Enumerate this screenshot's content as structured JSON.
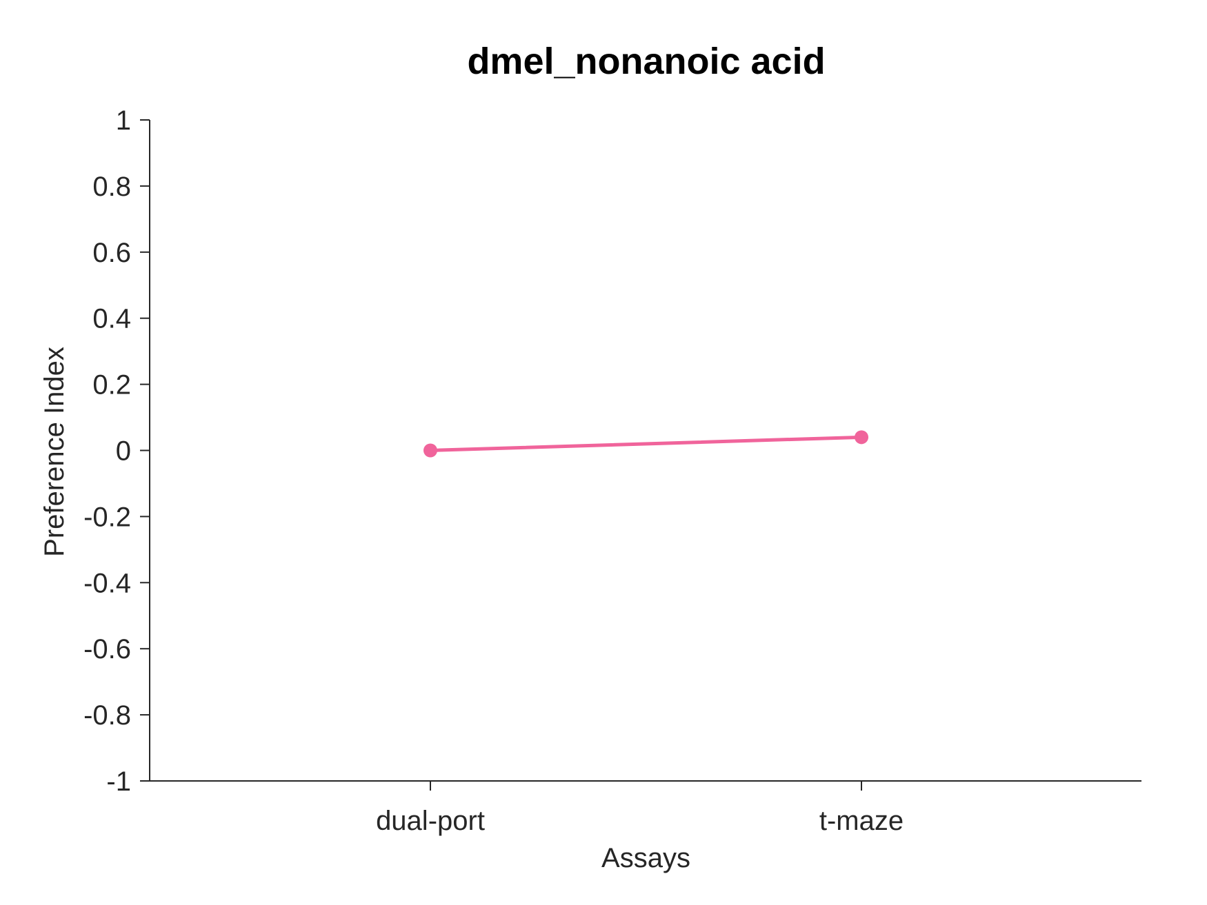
{
  "chart_data": {
    "type": "line",
    "title": "dmel_nonanoic acid",
    "xlabel": "Assays",
    "ylabel": "Preference Index",
    "categories": [
      "dual-port",
      "t-maze"
    ],
    "series": [
      {
        "values": [
          0.0,
          0.04
        ],
        "color": "#f0649b"
      }
    ],
    "ylim": [
      -1,
      1
    ],
    "yticks": [
      1,
      0.8,
      0.6,
      0.4,
      0.2,
      0,
      -0.2,
      -0.4,
      -0.6,
      -0.8,
      -1
    ],
    "ytick_labels": [
      "1",
      "0.8",
      "0.6",
      "0.4",
      "0.2",
      "0",
      "-0.2",
      "-0.4",
      "-0.6",
      "-0.8",
      "-1"
    ],
    "grid": false,
    "legend": "none"
  }
}
